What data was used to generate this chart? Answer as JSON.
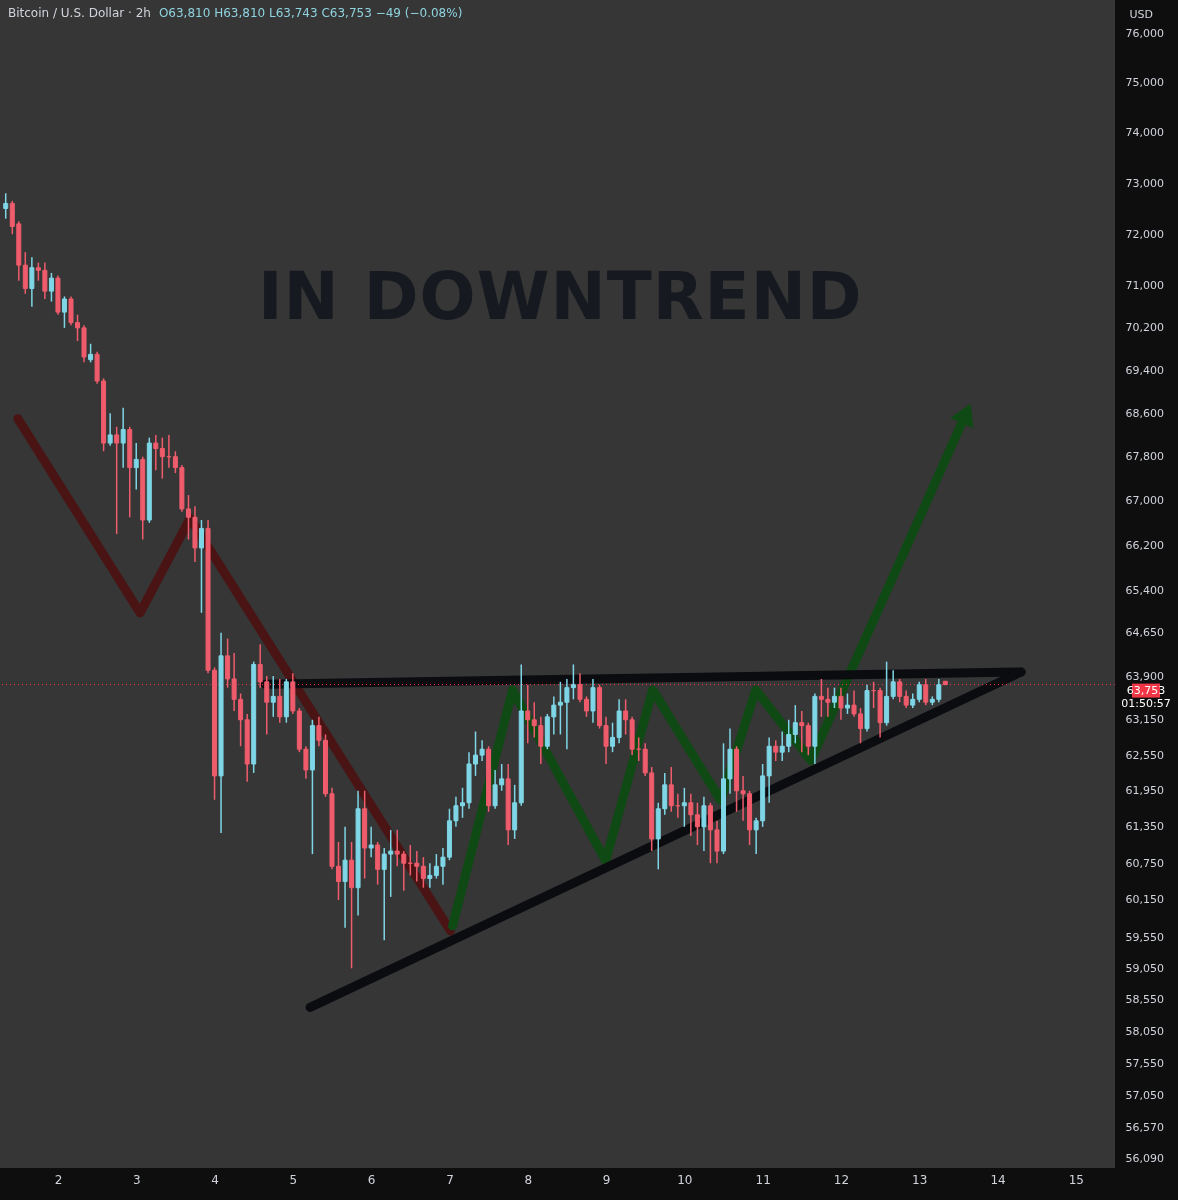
{
  "chart_data": {
    "type": "candlestick",
    "title": "Bitcoin / U.S. Dollar · 2h",
    "subtitle": "O63,810 H63,810 L63,743 C63,753 −49 (−0.08%)",
    "ylabel": "USD",
    "x": [
      1.333,
      1.417,
      1.5,
      1.583,
      1.667,
      1.75,
      1.833,
      1.917,
      2,
      2.083,
      2.167,
      2.25,
      2.333,
      2.417,
      2.5,
      2.583,
      2.667,
      2.75,
      2.833,
      2.917,
      3,
      3.083,
      3.167,
      3.25,
      3.333,
      3.417,
      3.5,
      3.583,
      3.667,
      3.75,
      3.833,
      3.917,
      4,
      4.083,
      4.167,
      4.25,
      4.333,
      4.417,
      4.5,
      4.583,
      4.667,
      4.75,
      4.833,
      4.917,
      5,
      5.083,
      5.167,
      5.25,
      5.333,
      5.417,
      5.5,
      5.583,
      5.667,
      5.75,
      5.833,
      5.917,
      6,
      6.083,
      6.167,
      6.25,
      6.333,
      6.417,
      6.5,
      6.583,
      6.667,
      6.75,
      6.833,
      6.917,
      7,
      7.083,
      7.167,
      7.25,
      7.333,
      7.417,
      7.5,
      7.583,
      7.667,
      7.75,
      7.833,
      7.917,
      8,
      8.083,
      8.167,
      8.25,
      8.333,
      8.417,
      8.5,
      8.583,
      8.667,
      8.75,
      8.833,
      8.917,
      9,
      9.083,
      9.167,
      9.25,
      9.333,
      9.417,
      9.5,
      9.583,
      9.667,
      9.75,
      9.833,
      9.917,
      10,
      10.083,
      10.167,
      10.25,
      10.333,
      10.417,
      10.5,
      10.583,
      10.667,
      10.75,
      10.833,
      10.917,
      11,
      11.083,
      11.167,
      11.25,
      11.333,
      11.417,
      11.5,
      11.583,
      11.667,
      11.75,
      11.833,
      11.917,
      12,
      12.083,
      12.167,
      12.25,
      12.333,
      12.417,
      12.5,
      12.583,
      12.667,
      12.75,
      12.833,
      12.917,
      13,
      13.083,
      13.167,
      13.25,
      13.333
    ],
    "ohlc": [
      [
        72500,
        72800,
        72300,
        72600
      ],
      [
        72600,
        72650,
        72000,
        72150
      ],
      [
        72200,
        72250,
        71100,
        71400
      ],
      [
        71400,
        71650,
        70850,
        70950
      ],
      [
        70950,
        71550,
        70600,
        71350
      ],
      [
        71350,
        71450,
        71100,
        71300
      ],
      [
        71300,
        71450,
        70750,
        70900
      ],
      [
        70900,
        71250,
        70700,
        71150
      ],
      [
        71150,
        71200,
        70450,
        70500
      ],
      [
        70500,
        70800,
        70200,
        70750
      ],
      [
        70750,
        70800,
        70250,
        70300
      ],
      [
        70300,
        70450,
        69950,
        70200
      ],
      [
        70200,
        70250,
        69550,
        69650
      ],
      [
        69600,
        69900,
        69550,
        69700
      ],
      [
        69700,
        69750,
        69150,
        69200
      ],
      [
        69200,
        69250,
        67900,
        68050
      ],
      [
        68050,
        68600,
        68000,
        68200
      ],
      [
        68200,
        68350,
        66400,
        68050
      ],
      [
        68050,
        68700,
        67600,
        68300
      ],
      [
        68300,
        68350,
        66700,
        67600
      ],
      [
        67600,
        68050,
        67200,
        67750
      ],
      [
        67750,
        67800,
        66300,
        66650
      ],
      [
        66650,
        68150,
        66600,
        68050
      ],
      [
        68050,
        68200,
        67550,
        67950
      ],
      [
        67950,
        68150,
        67400,
        67800
      ],
      [
        67800,
        68200,
        67600,
        67800
      ],
      [
        67800,
        67900,
        67500,
        67600
      ],
      [
        67600,
        67650,
        66800,
        66850
      ],
      [
        66850,
        67100,
        66300,
        66700
      ],
      [
        66700,
        66900,
        65900,
        66150
      ],
      [
        66150,
        66650,
        65000,
        66500
      ],
      [
        66500,
        66650,
        63950,
        64000
      ],
      [
        64000,
        64050,
        61800,
        62200
      ],
      [
        62200,
        64650,
        61250,
        64250
      ],
      [
        64250,
        64550,
        63700,
        63850
      ],
      [
        63850,
        64300,
        63300,
        63500
      ],
      [
        63500,
        63600,
        62700,
        63150
      ],
      [
        63150,
        63250,
        62100,
        62400
      ],
      [
        62400,
        64150,
        62250,
        64100
      ],
      [
        64100,
        64450,
        63700,
        63800
      ],
      [
        63800,
        63900,
        62900,
        63450
      ],
      [
        63450,
        63900,
        63200,
        63550
      ],
      [
        63550,
        63850,
        63100,
        63200
      ],
      [
        63200,
        63850,
        63100,
        63800
      ],
      [
        63800,
        63950,
        63250,
        63300
      ],
      [
        63300,
        63350,
        62600,
        62650
      ],
      [
        62650,
        62700,
        62150,
        62300
      ],
      [
        62300,
        63150,
        60900,
        63050
      ],
      [
        63050,
        63200,
        62700,
        62800
      ],
      [
        62800,
        62900,
        61850,
        61900
      ],
      [
        61900,
        62000,
        60650,
        60700
      ],
      [
        60700,
        61100,
        60150,
        60450
      ],
      [
        60450,
        61350,
        59700,
        60800
      ],
      [
        60800,
        61100,
        59050,
        60350
      ],
      [
        60350,
        61950,
        59900,
        61650
      ],
      [
        61650,
        61950,
        60500,
        61000
      ],
      [
        61000,
        61350,
        60850,
        61050
      ],
      [
        61050,
        61100,
        60400,
        60650
      ],
      [
        60650,
        61000,
        59500,
        60900
      ],
      [
        60900,
        61300,
        60200,
        60950
      ],
      [
        60950,
        61300,
        60700,
        60900
      ],
      [
        60900,
        60950,
        60300,
        60750
      ],
      [
        60750,
        61050,
        60550,
        60750
      ],
      [
        60750,
        60950,
        60450,
        60700
      ],
      [
        60700,
        60850,
        60350,
        60500
      ],
      [
        60500,
        60750,
        60350,
        60550
      ],
      [
        60550,
        60900,
        60500,
        60700
      ],
      [
        60700,
        61000,
        60400,
        60850
      ],
      [
        60850,
        61650,
        60800,
        61450
      ],
      [
        61450,
        61850,
        61350,
        61700
      ],
      [
        61700,
        62000,
        61500,
        61750
      ],
      [
        61750,
        62600,
        61650,
        62400
      ],
      [
        62400,
        62950,
        62200,
        62550
      ],
      [
        62550,
        62800,
        62450,
        62650
      ],
      [
        62650,
        62700,
        61600,
        61700
      ],
      [
        61700,
        62300,
        61650,
        62050
      ],
      [
        62050,
        62400,
        61950,
        62150
      ],
      [
        62150,
        62400,
        61050,
        61300
      ],
      [
        61300,
        62050,
        61150,
        61750
      ],
      [
        61750,
        64100,
        61700,
        63300
      ],
      [
        63300,
        63750,
        62750,
        63150
      ],
      [
        63150,
        63450,
        62850,
        63050
      ],
      [
        63050,
        63200,
        62400,
        62700
      ],
      [
        62700,
        63250,
        62650,
        63200
      ],
      [
        63200,
        63550,
        62900,
        63400
      ],
      [
        63400,
        63800,
        62900,
        63450
      ],
      [
        63450,
        63850,
        62650,
        63700
      ],
      [
        63700,
        64100,
        63500,
        63750
      ],
      [
        63750,
        63950,
        63450,
        63500
      ],
      [
        63500,
        63550,
        63200,
        63300
      ],
      [
        63300,
        63850,
        63100,
        63700
      ],
      [
        63700,
        63750,
        63000,
        63050
      ],
      [
        63050,
        63200,
        62400,
        62700
      ],
      [
        62700,
        63100,
        62600,
        62850
      ],
      [
        62850,
        63500,
        62750,
        63300
      ],
      [
        63300,
        63500,
        62900,
        63150
      ],
      [
        63150,
        63200,
        62550,
        62650
      ],
      [
        62650,
        62850,
        62450,
        62650
      ],
      [
        62650,
        62750,
        62200,
        62250
      ],
      [
        62250,
        62350,
        60950,
        61150
      ],
      [
        61150,
        61750,
        60650,
        61650
      ],
      [
        61650,
        62250,
        61550,
        62050
      ],
      [
        62050,
        62350,
        61600,
        61700
      ],
      [
        61700,
        61900,
        61500,
        61700
      ],
      [
        61700,
        62000,
        61350,
        61750
      ],
      [
        61750,
        61900,
        61200,
        61550
      ],
      [
        61550,
        61750,
        61050,
        61350
      ],
      [
        61350,
        61850,
        60950,
        61700
      ],
      [
        61700,
        61750,
        60750,
        61300
      ],
      [
        61300,
        61450,
        60750,
        60950
      ],
      [
        60950,
        62750,
        60900,
        62150
      ],
      [
        62150,
        63000,
        61900,
        62650
      ],
      [
        62650,
        62700,
        61600,
        61950
      ],
      [
        61950,
        62200,
        61450,
        61900
      ],
      [
        61900,
        61950,
        61050,
        61300
      ],
      [
        61300,
        61500,
        60900,
        61450
      ],
      [
        61450,
        62400,
        61350,
        62200
      ],
      [
        62200,
        62850,
        61750,
        62700
      ],
      [
        62700,
        62800,
        62450,
        62600
      ],
      [
        62600,
        62950,
        62450,
        62700
      ],
      [
        62700,
        63150,
        62600,
        62900
      ],
      [
        62900,
        63400,
        62750,
        63100
      ],
      [
        63100,
        63300,
        62600,
        63050
      ],
      [
        63050,
        63100,
        62550,
        62700
      ],
      [
        62700,
        63600,
        62400,
        63550
      ],
      [
        63550,
        63850,
        63200,
        63500
      ],
      [
        63500,
        63700,
        63200,
        63450
      ],
      [
        63450,
        63700,
        63350,
        63550
      ],
      [
        63550,
        63700,
        63150,
        63350
      ],
      [
        63350,
        63600,
        63250,
        63400
      ],
      [
        63400,
        63650,
        63200,
        63250
      ],
      [
        63250,
        63350,
        62750,
        63000
      ],
      [
        63000,
        63750,
        62950,
        63650
      ],
      [
        63650,
        63800,
        63350,
        63650
      ],
      [
        63650,
        63700,
        62850,
        63100
      ],
      [
        63100,
        64150,
        63050,
        63550
      ],
      [
        63550,
        64000,
        63500,
        63800
      ],
      [
        63800,
        63850,
        63450,
        63550
      ],
      [
        63550,
        63650,
        63350,
        63400
      ],
      [
        63400,
        63600,
        63350,
        63500
      ],
      [
        63500,
        63800,
        63450,
        63750
      ],
      [
        63750,
        63850,
        63400,
        63450
      ],
      [
        63450,
        63550,
        63400,
        63500
      ],
      [
        63500,
        63850,
        63450,
        63750
      ],
      [
        63810,
        63810,
        63743,
        63753
      ]
    ],
    "colors": [
      "#7fd6e6",
      "#ef5c6c",
      "#ef5c6c",
      "#ef5c6c",
      "#7fd6e6",
      "#ef5c6c",
      "#ef5c6c",
      "#7fd6e6",
      "#ef5c6c",
      "#7fd6e6",
      "#ef5c6c",
      "#ef5c6c",
      "#ef5c6c",
      "#7fd6e6",
      "#ef5c6c",
      "#ef5c6c",
      "#7fd6e6",
      "#ef5c6c",
      "#7fd6e6",
      "#ef5c6c",
      "#7fd6e6",
      "#ef5c6c",
      "#7fd6e6",
      "#ef5c6c",
      "#ef5c6c",
      "#ef5c6c",
      "#ef5c6c",
      "#ef5c6c",
      "#ef5c6c",
      "#ef5c6c",
      "#7fd6e6",
      "#ef5c6c",
      "#ef5c6c",
      "#7fd6e6",
      "#ef5c6c",
      "#ef5c6c",
      "#ef5c6c",
      "#ef5c6c",
      "#7fd6e6",
      "#ef5c6c",
      "#ef5c6c",
      "#7fd6e6",
      "#ef5c6c",
      "#7fd6e6",
      "#ef5c6c",
      "#ef5c6c",
      "#ef5c6c",
      "#7fd6e6",
      "#ef5c6c",
      "#ef5c6c",
      "#ef5c6c",
      "#ef5c6c",
      "#7fd6e6",
      "#ef5c6c",
      "#7fd6e6",
      "#ef5c6c",
      "#7fd6e6",
      "#ef5c6c",
      "#7fd6e6",
      "#7fd6e6",
      "#ef5c6c",
      "#ef5c6c",
      "#ef5c6c",
      "#ef5c6c",
      "#ef5c6c",
      "#7fd6e6",
      "#7fd6e6",
      "#7fd6e6",
      "#7fd6e6",
      "#7fd6e6",
      "#7fd6e6",
      "#7fd6e6",
      "#7fd6e6",
      "#7fd6e6",
      "#ef5c6c",
      "#7fd6e6",
      "#7fd6e6",
      "#ef5c6c",
      "#7fd6e6",
      "#7fd6e6",
      "#ef5c6c",
      "#ef5c6c",
      "#ef5c6c",
      "#7fd6e6",
      "#7fd6e6",
      "#7fd6e6",
      "#7fd6e6",
      "#7fd6e6",
      "#ef5c6c",
      "#ef5c6c",
      "#7fd6e6",
      "#ef5c6c",
      "#ef5c6c",
      "#7fd6e6",
      "#7fd6e6",
      "#ef5c6c",
      "#ef5c6c",
      "#ef5c6c",
      "#ef5c6c",
      "#ef5c6c",
      "#7fd6e6",
      "#7fd6e6",
      "#ef5c6c",
      "#ef5c6c",
      "#7fd6e6",
      "#ef5c6c",
      "#ef5c6c",
      "#7fd6e6",
      "#ef5c6c",
      "#ef5c6c",
      "#7fd6e6",
      "#7fd6e6",
      "#ef5c6c",
      "#ef5c6c",
      "#ef5c6c",
      "#7fd6e6",
      "#7fd6e6",
      "#7fd6e6",
      "#ef5c6c",
      "#7fd6e6",
      "#7fd6e6",
      "#7fd6e6",
      "#ef5c6c",
      "#ef5c6c",
      "#7fd6e6",
      "#ef5c6c",
      "#ef5c6c",
      "#7fd6e6",
      "#ef5c6c",
      "#7fd6e6",
      "#ef5c6c",
      "#ef5c6c",
      "#7fd6e6",
      "#ef5c6c",
      "#ef5c6c",
      "#7fd6e6",
      "#7fd6e6",
      "#ef5c6c",
      "#ef5c6c",
      "#7fd6e6",
      "#7fd6e6",
      "#ef5c6c",
      "#7fd6e6",
      "#7fd6e6",
      "#ef5c6c"
    ],
    "series": [
      {
        "type": "line",
        "color": "#4a1414",
        "x": [
          1.488,
          3.049,
          3.688,
          7.013
        ],
        "values": [
          68500,
          65000,
          66680,
          59650
        ]
      },
      {
        "type": "line",
        "color": "#0f4a14",
        "x": [
          7.04,
          7.806,
          8.995,
          9.596,
          10.465,
          10.913,
          11.616,
          13.6
        ],
        "values": [
          59730,
          63660,
          60790,
          63660,
          61790,
          63660,
          62460,
          68600
        ]
      },
      {
        "type": "line",
        "color": "#0a0c10",
        "x": [
          4.647,
          14.3
        ],
        "values": [
          63760,
          63970
        ]
      },
      {
        "type": "line",
        "color": "#0a0c10",
        "x": [
          5.22,
          14.3
        ],
        "values": [
          58430,
          63970
        ]
      }
    ],
    "xlim": [
      1.26,
      15.5
    ],
    "xticks": [
      2,
      3,
      4,
      5,
      6,
      7,
      8,
      9,
      10,
      11,
      12,
      13,
      14,
      15
    ],
    "ylim": [
      55950,
      76700
    ],
    "yticks": [
      {
        "value": 56090,
        "label": "56,090"
      },
      {
        "value": 56570,
        "label": "56,570"
      },
      {
        "value": 57050,
        "label": "57,050"
      },
      {
        "value": 57550,
        "label": "57,550"
      },
      {
        "value": 58050,
        "label": "58,050"
      },
      {
        "value": 58550,
        "label": "58,550"
      },
      {
        "value": 59050,
        "label": "59,050"
      },
      {
        "value": 59550,
        "label": "59,550"
      },
      {
        "value": 60150,
        "label": "60,150"
      },
      {
        "value": 60750,
        "label": "60,750"
      },
      {
        "value": 61350,
        "label": "61,350"
      },
      {
        "value": 61950,
        "label": "61,950"
      },
      {
        "value": 62550,
        "label": "62,550"
      },
      {
        "value": 63150,
        "label": "63,150"
      },
      {
        "value": 63900,
        "label": "63,900"
      },
      {
        "value": 64650,
        "label": "64,650"
      },
      {
        "value": 65400,
        "label": "65,400"
      },
      {
        "value": 66200,
        "label": "66,200"
      },
      {
        "value": 67000,
        "label": "67,000"
      },
      {
        "value": 67800,
        "label": "67,800"
      },
      {
        "value": 68600,
        "label": "68,600"
      },
      {
        "value": 69400,
        "label": "69,400"
      },
      {
        "value": 70200,
        "label": "70,200"
      },
      {
        "value": 71000,
        "label": "71,000"
      },
      {
        "value": 72000,
        "label": "72,000"
      },
      {
        "value": 73000,
        "label": "73,000"
      },
      {
        "value": 74000,
        "label": "74,000"
      },
      {
        "value": 75000,
        "label": "75,000"
      },
      {
        "value": 76000,
        "label": "76,000"
      }
    ],
    "log": true,
    "ref_lines": [
      {
        "axis": "y",
        "value": 63753,
        "label": "63,753",
        "color": "#f23645",
        "line_style": "dotted"
      }
    ],
    "annotations": [
      "IN DOWNTREND",
      "01:50:57"
    ]
  }
}
